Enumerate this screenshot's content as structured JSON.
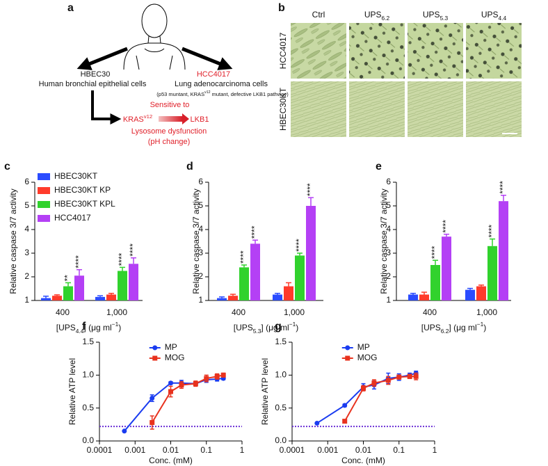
{
  "diagram": {
    "panel": "a",
    "left_cell": "HBEC30",
    "left_desc": "Human bronchial epithelial cells",
    "right_cell": "HCC4017",
    "right_desc": "Lung adenocarcinoma cells",
    "right_note": [
      "(p53 muntant, KRAS",
      {
        "sup": "v12"
      },
      " mutant, defective LKB1 pathway)"
    ],
    "sensitive": "Sensitive to",
    "source": [
      "KRAS",
      {
        "sup": "v12"
      }
    ],
    "target": "LKB1",
    "effect": "Lysosome dysfunction",
    "effect_note": "(pH change)"
  },
  "micrographs": {
    "panel": "b",
    "columns": [
      "Ctrl",
      [
        "UPS",
        {
          "sub": "6.2"
        }
      ],
      [
        "UPS",
        {
          "sub": "5.3"
        }
      ],
      [
        "UPS",
        {
          "sub": "4.4"
        }
      ]
    ],
    "rows": [
      "HCC4017",
      "HBEC30KT"
    ]
  },
  "chart_data": [
    {
      "panel": "c",
      "type": "bar",
      "ylabel": "Relative caspase 3/7 activity",
      "xlabel": [
        "[UPS",
        {
          "sub": "4.4"
        },
        "] (μg ml",
        {
          "sup": "−1"
        },
        ")"
      ],
      "categories": [
        "400",
        "1,000"
      ],
      "ylim": [
        1,
        6
      ],
      "yticks": [
        1,
        2,
        3,
        4,
        5,
        6
      ],
      "legend": "upper left",
      "series": [
        {
          "name": "HBEC30KT",
          "color": "#2b4cff",
          "values": [
            1.1,
            1.15
          ],
          "errors": [
            0.08,
            0.05
          ]
        },
        {
          "name": "HBEC30KT KP",
          "color": "#ff3b2b",
          "values": [
            1.2,
            1.25
          ],
          "errors": [
            0.04,
            0.05
          ]
        },
        {
          "name": "HBEC30KT KPL",
          "color": "#31d22d",
          "values": [
            1.6,
            2.25
          ],
          "errors": [
            0.15,
            0.15
          ],
          "significance": [
            "**",
            "****"
          ]
        },
        {
          "name": "HCC4017",
          "color": "#b440f5",
          "values": [
            2.05,
            2.55
          ],
          "errors": [
            0.25,
            0.25
          ],
          "significance": [
            "****",
            "****"
          ]
        }
      ]
    },
    {
      "panel": "d",
      "type": "bar",
      "ylabel": "Relative caspase 3/7 activity",
      "xlabel": [
        "[UPS",
        {
          "sub": "5.3"
        },
        "] (μg ml",
        {
          "sup": "−1"
        },
        ")"
      ],
      "categories": [
        "400",
        "1,000"
      ],
      "ylim": [
        1,
        6
      ],
      "yticks": [
        1,
        2,
        3,
        4,
        5,
        6
      ],
      "series": [
        {
          "color": "#2b4cff",
          "values": [
            1.1,
            1.25
          ],
          "errors": [
            0.05,
            0.05
          ]
        },
        {
          "color": "#ff3b2b",
          "values": [
            1.2,
            1.6
          ],
          "errors": [
            0.06,
            0.15
          ]
        },
        {
          "color": "#31d22d",
          "values": [
            2.4,
            2.9
          ],
          "errors": [
            0.1,
            0.1
          ],
          "significance": [
            "****",
            "****"
          ]
        },
        {
          "color": "#b440f5",
          "values": [
            3.4,
            5.0
          ],
          "errors": [
            0.15,
            0.35
          ],
          "significance": [
            "****",
            "****"
          ]
        }
      ]
    },
    {
      "panel": "e",
      "type": "bar",
      "ylabel": "Relative caspase 3/7 activity",
      "xlabel": [
        "[UPS",
        {
          "sub": "6.2"
        },
        "] (μg ml",
        {
          "sup": "−1"
        },
        ")"
      ],
      "categories": [
        "400",
        "1,000"
      ],
      "ylim": [
        1,
        6
      ],
      "yticks": [
        1,
        2,
        3,
        4,
        5,
        6
      ],
      "series": [
        {
          "color": "#2b4cff",
          "values": [
            1.25,
            1.45
          ],
          "errors": [
            0.05,
            0.06
          ]
        },
        {
          "color": "#ff3b2b",
          "values": [
            1.25,
            1.6
          ],
          "errors": [
            0.1,
            0.05
          ]
        },
        {
          "color": "#31d22d",
          "values": [
            2.5,
            3.3
          ],
          "errors": [
            0.2,
            0.3
          ],
          "significance": [
            "****",
            "****"
          ]
        },
        {
          "color": "#b440f5",
          "values": [
            3.7,
            5.2
          ],
          "errors": [
            0.1,
            0.25
          ],
          "significance": [
            "****",
            "****"
          ]
        }
      ]
    },
    {
      "panel": "f",
      "type": "line",
      "ylabel": "Relative ATP level",
      "xlabel": "Conc. (mM)",
      "xscale": "log",
      "xlim": [
        0.0001,
        1
      ],
      "xticks": [
        0.0001,
        0.001,
        0.01,
        0.1,
        1
      ],
      "ylim": [
        0,
        1.5
      ],
      "yticks": [
        {
          "value": 0,
          "label": "0.0"
        },
        0.5,
        {
          "value": 1,
          "label": "1.0"
        },
        1.5
      ],
      "legend": "upper center",
      "reference_line": {
        "value": 0.22,
        "color": "#6b2fd6"
      },
      "series": [
        {
          "name": "MP",
          "color": "#1a3cf0",
          "marker": "circle",
          "x": [
            0.0005,
            0.003,
            0.01,
            0.02,
            0.05,
            0.1,
            0.2,
            0.3
          ],
          "values": [
            0.15,
            0.65,
            0.88,
            0.88,
            0.87,
            0.93,
            0.94,
            0.95
          ],
          "errors": [
            0,
            0.05,
            0.02,
            0.04,
            0.03,
            0.04,
            0.03,
            0.02
          ]
        },
        {
          "name": "MOG",
          "color": "#e8321e",
          "marker": "square",
          "x": [
            0.003,
            0.01,
            0.02,
            0.05,
            0.1,
            0.2,
            0.3
          ],
          "values": [
            0.28,
            0.75,
            0.85,
            0.87,
            0.95,
            0.98,
            1.0
          ],
          "errors": [
            0.1,
            0.08,
            0.05,
            0.04,
            0.05,
            0.04,
            0.03
          ]
        }
      ]
    },
    {
      "panel": "g",
      "type": "line",
      "ylabel": "Relative ATP level",
      "xlabel": "Conc. (mM)",
      "xscale": "log",
      "xlim": [
        0.0001,
        1
      ],
      "xticks": [
        0.0001,
        0.001,
        0.01,
        0.1,
        1
      ],
      "ylim": [
        0,
        1.5
      ],
      "yticks": [
        {
          "value": 0,
          "label": "0.0"
        },
        0.5,
        {
          "value": 1,
          "label": "1.0"
        },
        1.5
      ],
      "legend": "upper center",
      "reference_line": {
        "value": 0.22,
        "color": "#6b2fd6"
      },
      "series": [
        {
          "name": "MP",
          "color": "#1a3cf0",
          "marker": "circle",
          "x": [
            0.0005,
            0.003,
            0.01,
            0.02,
            0.05,
            0.1,
            0.2,
            0.3
          ],
          "values": [
            0.27,
            0.54,
            0.82,
            0.85,
            0.95,
            0.97,
            1.0,
            1.03
          ],
          "errors": [
            0,
            0.02,
            0.05,
            0.06,
            0.08,
            0.05,
            0.03,
            0.03
          ]
        },
        {
          "name": "MOG",
          "color": "#e8321e",
          "marker": "square",
          "x": [
            0.003,
            0.01,
            0.02,
            0.05,
            0.1,
            0.2,
            0.3
          ],
          "values": [
            0.3,
            0.8,
            0.88,
            0.92,
            0.97,
            0.98,
            0.98
          ],
          "errors": [
            0.02,
            0.04,
            0.05,
            0.06,
            0.03,
            0.03,
            0.05
          ]
        }
      ]
    }
  ]
}
